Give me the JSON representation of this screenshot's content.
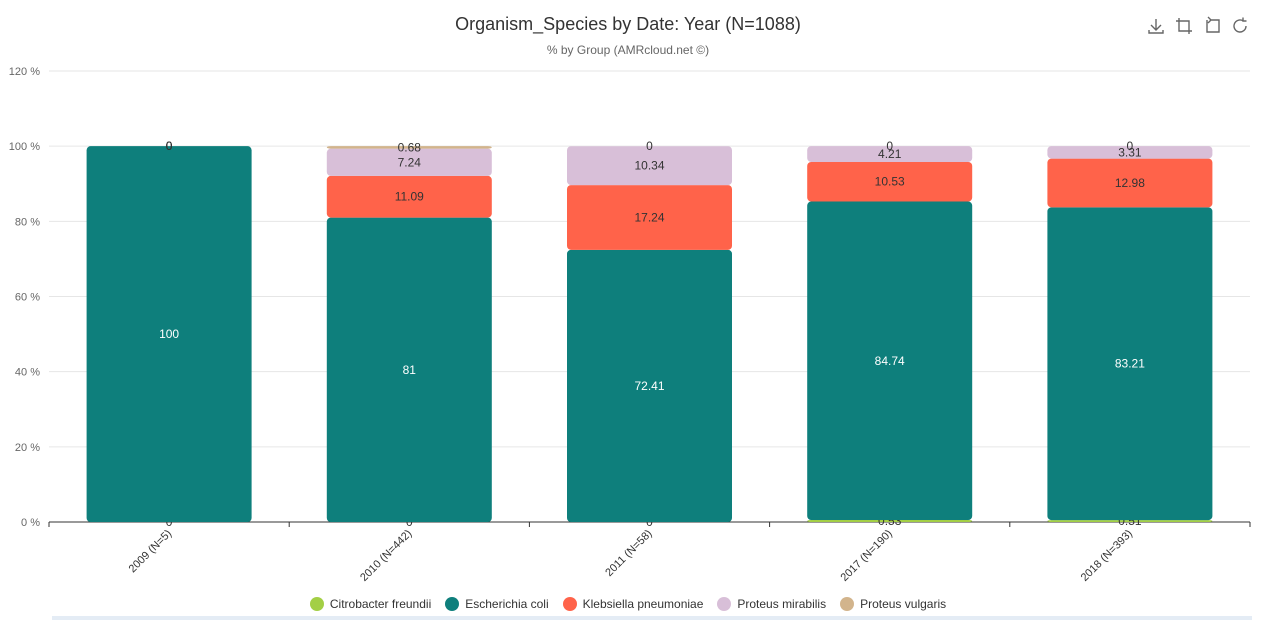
{
  "chart_data": {
    "type": "bar",
    "stacked": true,
    "title": "Organism_Species by Date: Year (N=1088)",
    "subtitle": "% by Group (AMRcloud.net ©)",
    "categories": [
      "2009 (N=5)",
      "2010 (N=442)",
      "2011 (N=58)",
      "2017 (N=190)",
      "2018 (N=393)"
    ],
    "ylim": [
      0,
      120
    ],
    "yticks": [
      "0 %",
      "20 %",
      "40 %",
      "60 %",
      "80 %",
      "100 %",
      "120 %"
    ],
    "grid": true,
    "legend_position": "bottom",
    "series": [
      {
        "name": "Citrobacter freundii",
        "color": "#a3cf45",
        "values": [
          0,
          0,
          0,
          0.53,
          0.51
        ],
        "labels": [
          "0",
          "0",
          "0",
          "0.53",
          "0.51"
        ]
      },
      {
        "name": "Escherichia coli",
        "color": "#0e7f7c",
        "values": [
          100,
          81,
          72.41,
          84.74,
          83.21
        ],
        "labels": [
          "100",
          "81",
          "72.41",
          "84.74",
          "83.21"
        ]
      },
      {
        "name": "Klebsiella pneumoniae",
        "color": "#ff634a",
        "values": [
          0,
          11.09,
          17.24,
          10.53,
          12.98
        ],
        "labels": [
          "0",
          "11.09",
          "17.24",
          "10.53",
          "12.98"
        ]
      },
      {
        "name": "Proteus mirabilis",
        "color": "#d8bfd8",
        "values": [
          0,
          7.24,
          10.34,
          4.21,
          3.31
        ],
        "labels": [
          "0",
          "7.24",
          "10.34",
          "4.21",
          "3.31"
        ]
      },
      {
        "name": "Proteus vulgaris",
        "color": "#d2b48c",
        "values": [
          0,
          0.68,
          0,
          0,
          0
        ],
        "labels": [
          "0",
          "0.68",
          "0",
          "0",
          "0"
        ]
      }
    ]
  },
  "toolbar": {
    "icons": [
      "download-icon",
      "crop-icon",
      "restore-icon",
      "refresh-icon"
    ]
  }
}
